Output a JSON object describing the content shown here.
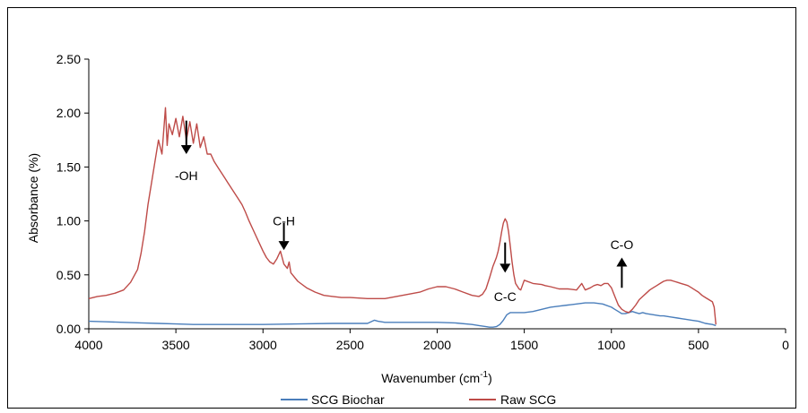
{
  "chart_data": {
    "type": "line",
    "title": "",
    "xlabel": "Wavenumber (cm",
    "xlabel_sup": "-1",
    "xlabel_close": ")",
    "ylabel": "Absorbance (%)",
    "xlim": [
      4000,
      0
    ],
    "ylim": [
      0,
      2.5
    ],
    "x_reversed": true,
    "x_ticks": [
      4000,
      3500,
      3000,
      2500,
      2000,
      1500,
      1000,
      500,
      0
    ],
    "x_tick_labels": [
      "4000",
      "3500",
      "3000",
      "2500",
      "2000",
      "1500",
      "1000",
      "500",
      "0"
    ],
    "y_ticks": [
      0,
      0.5,
      1.0,
      1.5,
      2.0,
      2.5
    ],
    "y_tick_labels": [
      "0.00",
      "0.50",
      "1.00",
      "1.50",
      "2.00",
      "2.50"
    ],
    "grid": false,
    "legend_position": "bottom",
    "series": [
      {
        "name": "SCG Biochar",
        "color": "#4a7ebb",
        "x": [
          4000,
          3900,
          3800,
          3700,
          3600,
          3500,
          3400,
          3300,
          3200,
          3000,
          2800,
          2600,
          2400,
          2360,
          2340,
          2300,
          2200,
          2000,
          1900,
          1800,
          1760,
          1720,
          1700,
          1680,
          1660,
          1640,
          1620,
          1600,
          1580,
          1550,
          1500,
          1450,
          1400,
          1350,
          1300,
          1250,
          1200,
          1150,
          1100,
          1050,
          1000,
          980,
          960,
          940,
          920,
          900,
          880,
          860,
          840,
          820,
          800,
          760,
          720,
          700,
          660,
          620,
          580,
          540,
          500,
          460,
          420,
          400
        ],
        "y": [
          0.07,
          0.065,
          0.06,
          0.055,
          0.05,
          0.045,
          0.04,
          0.04,
          0.04,
          0.04,
          0.045,
          0.05,
          0.05,
          0.08,
          0.07,
          0.06,
          0.06,
          0.06,
          0.055,
          0.04,
          0.03,
          0.02,
          0.015,
          0.015,
          0.02,
          0.04,
          0.08,
          0.13,
          0.15,
          0.15,
          0.15,
          0.16,
          0.18,
          0.2,
          0.21,
          0.22,
          0.23,
          0.24,
          0.24,
          0.23,
          0.2,
          0.18,
          0.16,
          0.14,
          0.14,
          0.15,
          0.16,
          0.15,
          0.14,
          0.15,
          0.14,
          0.13,
          0.12,
          0.12,
          0.11,
          0.1,
          0.09,
          0.08,
          0.07,
          0.05,
          0.04,
          0.03
        ]
      },
      {
        "name": "Raw SCG",
        "color": "#be4b48",
        "x": [
          4000,
          3950,
          3900,
          3850,
          3800,
          3760,
          3720,
          3700,
          3680,
          3660,
          3640,
          3620,
          3600,
          3580,
          3560,
          3550,
          3540,
          3520,
          3500,
          3480,
          3460,
          3440,
          3420,
          3400,
          3380,
          3360,
          3340,
          3320,
          3300,
          3280,
          3260,
          3240,
          3220,
          3200,
          3180,
          3160,
          3140,
          3120,
          3100,
          3080,
          3060,
          3040,
          3020,
          3000,
          2980,
          2960,
          2940,
          2920,
          2900,
          2880,
          2860,
          2850,
          2840,
          2800,
          2750,
          2700,
          2650,
          2600,
          2550,
          2500,
          2400,
          2300,
          2200,
          2100,
          2050,
          2000,
          1950,
          1900,
          1850,
          1800,
          1760,
          1740,
          1720,
          1700,
          1680,
          1660,
          1650,
          1640,
          1630,
          1620,
          1610,
          1600,
          1590,
          1580,
          1570,
          1560,
          1550,
          1530,
          1520,
          1500,
          1450,
          1400,
          1380,
          1350,
          1300,
          1250,
          1200,
          1170,
          1150,
          1120,
          1100,
          1080,
          1060,
          1040,
          1020,
          1000,
          980,
          960,
          940,
          920,
          900,
          880,
          860,
          840,
          820,
          800,
          780,
          760,
          740,
          720,
          700,
          680,
          660,
          640,
          620,
          600,
          580,
          560,
          540,
          520,
          500,
          480,
          460,
          440,
          420,
          410,
          400
        ],
        "y": [
          0.28,
          0.3,
          0.31,
          0.33,
          0.36,
          0.43,
          0.55,
          0.7,
          0.9,
          1.15,
          1.35,
          1.55,
          1.75,
          1.62,
          2.05,
          1.7,
          1.9,
          1.8,
          1.95,
          1.78,
          1.97,
          1.75,
          1.92,
          1.72,
          1.9,
          1.68,
          1.78,
          1.62,
          1.62,
          1.55,
          1.5,
          1.45,
          1.4,
          1.35,
          1.3,
          1.25,
          1.2,
          1.15,
          1.08,
          1.0,
          0.93,
          0.86,
          0.79,
          0.72,
          0.66,
          0.62,
          0.6,
          0.65,
          0.72,
          0.6,
          0.56,
          0.62,
          0.52,
          0.44,
          0.38,
          0.34,
          0.31,
          0.3,
          0.29,
          0.29,
          0.28,
          0.28,
          0.31,
          0.34,
          0.37,
          0.39,
          0.39,
          0.37,
          0.34,
          0.31,
          0.3,
          0.32,
          0.37,
          0.47,
          0.58,
          0.66,
          0.72,
          0.8,
          0.9,
          0.98,
          1.02,
          0.99,
          0.9,
          0.76,
          0.62,
          0.5,
          0.42,
          0.37,
          0.36,
          0.45,
          0.42,
          0.41,
          0.4,
          0.39,
          0.37,
          0.37,
          0.36,
          0.42,
          0.36,
          0.38,
          0.4,
          0.41,
          0.4,
          0.42,
          0.42,
          0.38,
          0.3,
          0.22,
          0.18,
          0.16,
          0.15,
          0.18,
          0.22,
          0.27,
          0.3,
          0.33,
          0.36,
          0.38,
          0.4,
          0.42,
          0.44,
          0.45,
          0.45,
          0.44,
          0.43,
          0.42,
          0.41,
          0.4,
          0.38,
          0.36,
          0.34,
          0.31,
          0.29,
          0.27,
          0.25,
          0.2,
          0.04
        ]
      }
    ],
    "annotations": [
      {
        "text": "-OH",
        "x": 3440,
        "arrow": "down",
        "arrow_from": 1.93,
        "arrow_to": 1.62,
        "label_y": 1.42
      },
      {
        "text": "C-H",
        "x": 2880,
        "arrow": "down",
        "arrow_from": 0.98,
        "arrow_to": 0.73,
        "label_y": 1.0
      },
      {
        "text": "C-C",
        "x": 1610,
        "arrow": "down",
        "arrow_from": 0.8,
        "arrow_to": 0.52,
        "label_y": 0.3
      },
      {
        "text": "C-O",
        "x": 940,
        "arrow": "up",
        "arrow_from": 0.38,
        "arrow_to": 0.66,
        "label_y": 0.78
      }
    ]
  }
}
